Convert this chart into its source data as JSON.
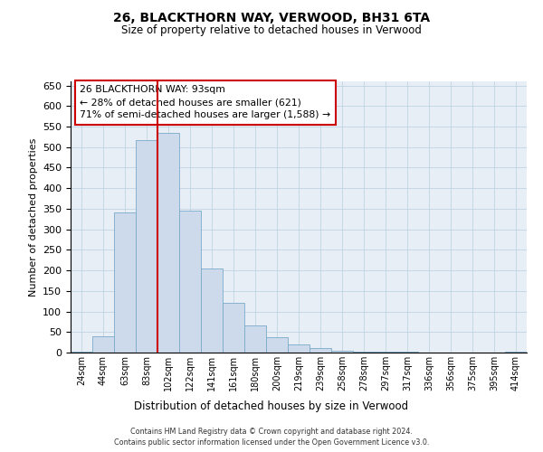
{
  "title": "26, BLACKTHORN WAY, VERWOOD, BH31 6TA",
  "subtitle": "Size of property relative to detached houses in Verwood",
  "xlabel": "Distribution of detached houses by size in Verwood",
  "ylabel": "Number of detached properties",
  "footer_line1": "Contains HM Land Registry data © Crown copyright and database right 2024.",
  "footer_line2": "Contains public sector information licensed under the Open Government Licence v3.0.",
  "annotation_line1": "26 BLACKTHORN WAY: 93sqm",
  "annotation_line2": "← 28% of detached houses are smaller (621)",
  "annotation_line3": "71% of semi-detached houses are larger (1,588) →",
  "bar_heights": [
    2,
    40,
    340,
    517,
    535,
    345,
    205,
    120,
    65,
    38,
    20,
    10,
    5,
    3,
    2,
    2,
    0,
    0,
    0,
    0,
    2
  ],
  "bin_labels": [
    "24sqm",
    "44sqm",
    "63sqm",
    "83sqm",
    "102sqm",
    "122sqm",
    "141sqm",
    "161sqm",
    "180sqm",
    "200sqm",
    "219sqm",
    "239sqm",
    "258sqm",
    "278sqm",
    "297sqm",
    "317sqm",
    "336sqm",
    "356sqm",
    "375sqm",
    "395sqm",
    "414sqm"
  ],
  "bar_color": "#ccdaeb",
  "bar_edge_color": "#7aaac8",
  "vline_x": 3.5,
  "vline_color": "#cc0000",
  "annotation_box_edgecolor": "#cc0000",
  "ylim": [
    0,
    660
  ],
  "yticks": [
    0,
    50,
    100,
    150,
    200,
    250,
    300,
    350,
    400,
    450,
    500,
    550,
    600,
    650
  ],
  "grid_color": "#b8cfe0",
  "plot_bg_color": "#e8eef5"
}
